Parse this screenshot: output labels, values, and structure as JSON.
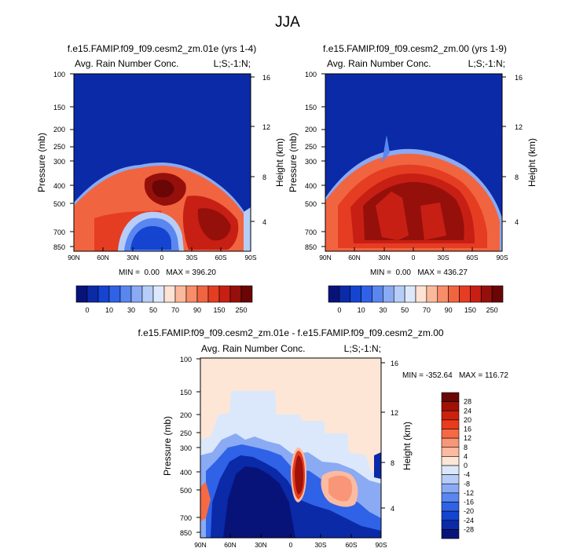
{
  "page_title": "JJA",
  "chart_data": [
    {
      "type": "heatmap",
      "title": "f.e15.FAMIP.f09_f09.cesm2_zm.01e (yrs 1-4)",
      "subtitle_left": "Avg. Rain Number Conc.",
      "subtitle_right": "L;S;-1:N;",
      "xlabel": "",
      "ylabel": "Pressure (mb)",
      "ylabel_right": "Height (km)",
      "x_ticks": [
        "90N",
        "60N",
        "30N",
        "0",
        "30S",
        "60S",
        "90S"
      ],
      "y_ticks": [
        "100",
        "150",
        "200",
        "250",
        "300",
        "400",
        "500",
        "700",
        "850"
      ],
      "y2_ticks": [
        "16",
        "12",
        "8",
        "4"
      ],
      "stats": "MIN =  0.00   MAX = 396.20",
      "colorbar_labels": [
        "0",
        "10",
        "30",
        "50",
        "70",
        "90",
        "150",
        "250"
      ]
    },
    {
      "type": "heatmap",
      "title": "f.e15.FAMIP.f09_f09.cesm2_zm.00 (yrs 1-9)",
      "subtitle_left": "Avg. Rain Number Conc.",
      "subtitle_right": "L;S;-1:N;",
      "xlabel": "",
      "ylabel": "Pressure (mb)",
      "ylabel_right": "Height (km)",
      "x_ticks": [
        "90N",
        "60N",
        "30N",
        "0",
        "30S",
        "60S",
        "90S"
      ],
      "y_ticks": [
        "100",
        "150",
        "200",
        "250",
        "300",
        "400",
        "500",
        "700",
        "850"
      ],
      "y2_ticks": [
        "16",
        "12",
        "8",
        "4"
      ],
      "stats": "MIN =  0.00   MAX = 436.27",
      "colorbar_labels": [
        "0",
        "10",
        "30",
        "50",
        "70",
        "90",
        "150",
        "250"
      ]
    },
    {
      "type": "heatmap",
      "title": "f.e15.FAMIP.f09_f09.cesm2_zm.01e - f.e15.FAMIP.f09_f09.cesm2_zm.00",
      "subtitle_left": "Avg. Rain Number Conc.",
      "subtitle_right": "L;S;-1:N;",
      "xlabel": "",
      "ylabel": "Pressure (mb)",
      "ylabel_right": "Height (km)",
      "x_ticks": [
        "90N",
        "60N",
        "30N",
        "0",
        "30S",
        "60S",
        "90S"
      ],
      "y_ticks": [
        "100",
        "150",
        "200",
        "250",
        "300",
        "400",
        "500",
        "700",
        "850"
      ],
      "y2_ticks": [
        "16",
        "12",
        "8",
        "4"
      ],
      "stats": "MIN = -352.64   MAX = 116.72",
      "colorbar_labels": [
        "28",
        "24",
        "20",
        "16",
        "12",
        "8",
        "4",
        "0",
        "-4",
        "-8",
        "-12",
        "-16",
        "-20",
        "-24",
        "-28"
      ]
    }
  ],
  "colors": {
    "abs_scale": [
      "#08137a",
      "#0a2aa8",
      "#1444d0",
      "#2f62e6",
      "#5a86f0",
      "#8aaaf4",
      "#b7cdf8",
      "#dde9fb",
      "#fde3d4",
      "#fbb99c",
      "#f78d69",
      "#f16440",
      "#e53d22",
      "#c81f14",
      "#96100b",
      "#6a0606"
    ],
    "diff_scale": [
      "#6a0606",
      "#a01108",
      "#cc210e",
      "#ea3b1c",
      "#f56a45",
      "#f99677",
      "#fbbba1",
      "#fde6d6",
      "#dbe8fb",
      "#b7cdf8",
      "#8aaaf4",
      "#5a86f0",
      "#2f62e6",
      "#1444d0",
      "#0a2aa8",
      "#08137a"
    ]
  }
}
